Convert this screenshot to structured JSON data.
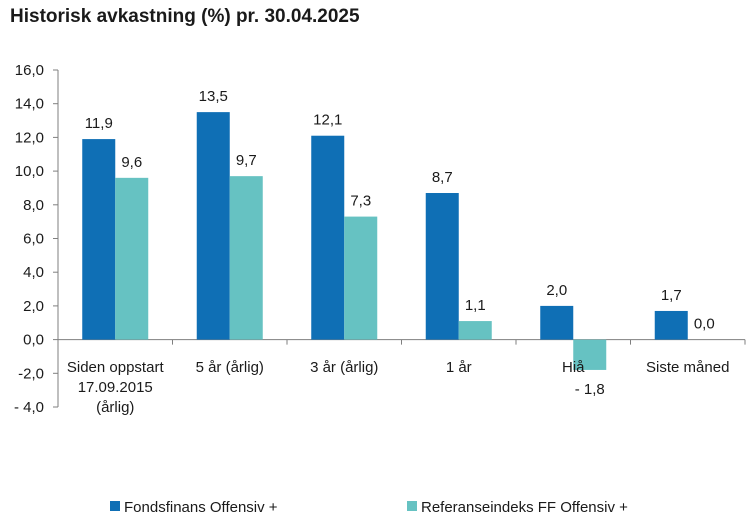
{
  "chart_data": {
    "type": "bar",
    "title": "Historisk avkastning (%) pr. 30.04.2025",
    "categories": [
      [
        "Siden oppstart",
        "17.09.2015",
        "(årlig)"
      ],
      [
        "5 år (årlig)"
      ],
      [
        "3 år (årlig)"
      ],
      [
        "1 år"
      ],
      [
        "Hiå"
      ],
      [
        "Siste måned"
      ]
    ],
    "series": [
      {
        "name": "Fondsfinans Offensiv +",
        "color": "#0f6fb5",
        "values": [
          11.9,
          13.5,
          12.1,
          8.7,
          2.0,
          1.7
        ],
        "labels": [
          "11,9",
          "13,5",
          "12,1",
          "8,7",
          "2,0",
          "1,7"
        ]
      },
      {
        "name": "Referanseindeks FF Offensiv +",
        "color": "#66c2c2",
        "values": [
          9.6,
          9.7,
          7.3,
          1.1,
          -1.8,
          0.0
        ],
        "labels": [
          "9,6",
          "9,7",
          "7,3",
          "1,1",
          "- 1,8",
          "0,0"
        ]
      }
    ],
    "ylim": [
      -4,
      16
    ],
    "yticks": [
      16,
      14,
      12,
      10,
      8,
      6,
      4,
      2,
      0,
      -2,
      -4
    ],
    "ytick_labels": [
      "16,0",
      "14,0",
      "12,0",
      "10,0",
      "8,0",
      "6,0",
      "4,0",
      "2,0",
      "0,0",
      "-2,0",
      "- 4,0"
    ],
    "xlabel": "",
    "ylabel": "",
    "grid": false,
    "legend_position": "bottom"
  }
}
